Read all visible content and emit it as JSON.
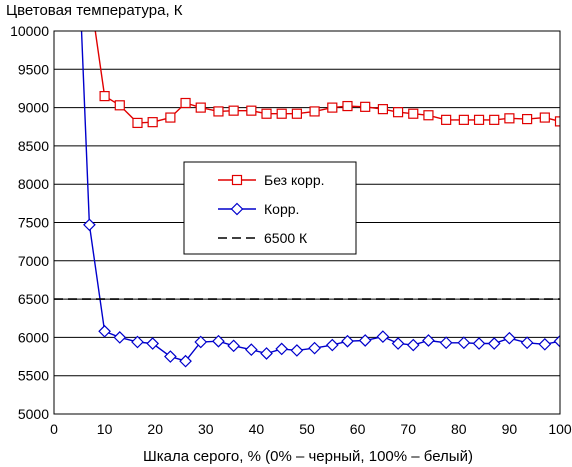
{
  "chart_data": {
    "type": "line",
    "title": "Цветовая температура, К",
    "xlabel": "Шкала серого, % (0% – черный, 100% – белый)",
    "ylabel": "",
    "xlim": [
      0,
      100
    ],
    "ylim": [
      5000,
      10000
    ],
    "x_ticks": [
      0,
      10,
      20,
      30,
      40,
      50,
      60,
      70,
      80,
      90,
      100
    ],
    "y_ticks": [
      5000,
      5500,
      6000,
      6500,
      7000,
      7500,
      8000,
      8500,
      9000,
      9500,
      10000
    ],
    "grid": "horizontal",
    "legend_position": "center",
    "series": [
      {
        "name": "Без корр.",
        "color": "#e00000",
        "marker": "square",
        "line": "solid",
        "x": [
          7.3,
          10,
          13,
          16.5,
          19.5,
          23,
          26,
          29,
          32.5,
          35.5,
          39,
          42,
          45,
          48,
          51.5,
          55,
          58,
          61.5,
          65,
          68,
          71,
          74,
          77.5,
          81,
          84,
          87,
          90,
          93.5,
          97,
          100
        ],
        "y": [
          10400,
          9150,
          9030,
          8800,
          8810,
          8870,
          9060,
          9000,
          8950,
          8960,
          8960,
          8920,
          8920,
          8920,
          8950,
          9000,
          9020,
          9010,
          8980,
          8940,
          8920,
          8900,
          8840,
          8840,
          8840,
          8840,
          8860,
          8850,
          8870,
          8820
        ]
      },
      {
        "name": "Корр.",
        "color": "#0000cc",
        "marker": "diamond",
        "line": "solid",
        "x": [
          5.2,
          7,
          10,
          13,
          16.5,
          19.5,
          23,
          26,
          29,
          32.5,
          35.5,
          39,
          42,
          45,
          48,
          51.5,
          55,
          58,
          61.5,
          65,
          68,
          71,
          74,
          77.5,
          81,
          84,
          87,
          90,
          93.5,
          97,
          100
        ],
        "y": [
          10400,
          7470,
          6080,
          6000,
          5940,
          5920,
          5750,
          5690,
          5940,
          5950,
          5890,
          5840,
          5790,
          5850,
          5830,
          5860,
          5900,
          5950,
          5960,
          6010,
          5920,
          5900,
          5960,
          5930,
          5930,
          5920,
          5920,
          5990,
          5930,
          5910,
          5950
        ]
      },
      {
        "name": "6500 К",
        "color": "#000000",
        "marker": "none",
        "line": "dashed",
        "x": [
          0,
          100
        ],
        "y": [
          6500,
          6500
        ]
      }
    ]
  }
}
